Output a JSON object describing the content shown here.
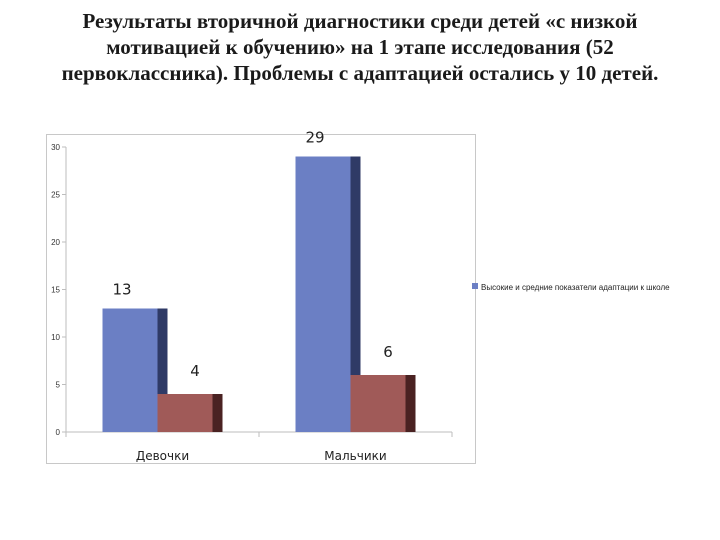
{
  "slide": {
    "title": "Результаты вторичной диагностики среди детей «с низкой мотивацией к обучению» на 1 этапе исследования (52 первоклассника). Проблемы с адаптацией остались у 10 детей."
  },
  "chart_data": {
    "type": "bar",
    "categories": [
      "Девочки",
      "Мальчики"
    ],
    "series": [
      {
        "name": "Высокие и средние показатели адаптации к школе",
        "values": [
          13,
          29
        ],
        "color": "#6b7fc4",
        "shade": "#2f3a66"
      },
      {
        "name": "",
        "values": [
          4,
          6
        ],
        "color": "#a05a58",
        "shade": "#4a2222"
      }
    ],
    "ylim": [
      0,
      30
    ],
    "yticks": [
      0,
      5,
      10,
      15,
      20,
      25,
      30
    ],
    "grid": false,
    "legend_position": "right",
    "data_labels": true
  }
}
